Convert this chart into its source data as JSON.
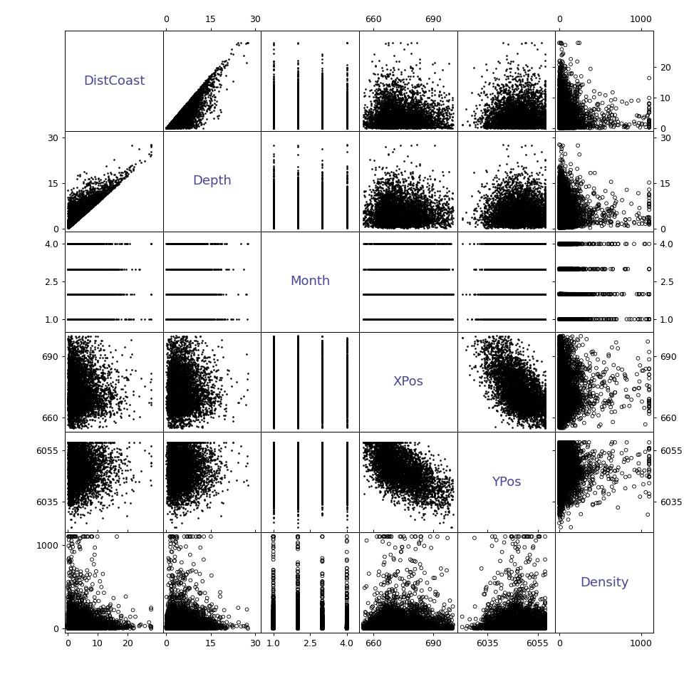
{
  "variables": [
    "DistCoast",
    "Depth",
    "Month",
    "XPos",
    "YPos",
    "Density"
  ],
  "ranges": {
    "DistCoast": [
      -1,
      32
    ],
    "Depth": [
      -1,
      32
    ],
    "Month": [
      0.5,
      4.5
    ],
    "XPos": [
      653,
      702
    ],
    "YPos": [
      6023,
      6062
    ],
    "Density": [
      -50,
      1150
    ]
  },
  "xlims": {
    "DistCoast": [
      -1,
      32
    ],
    "Depth": [
      -1,
      32
    ],
    "Month": [
      0.5,
      4.5
    ],
    "XPos": [
      653,
      702
    ],
    "YPos": [
      6023,
      6062
    ],
    "Density": [
      -50,
      1150
    ]
  },
  "xticks": {
    "DistCoast": [
      0,
      10,
      20
    ],
    "Depth": [
      0,
      15,
      30
    ],
    "Month": [
      1.0,
      2.5,
      4.0
    ],
    "XPos": [
      660,
      690
    ],
    "YPos": [
      6035,
      6055
    ],
    "Density": [
      0,
      1000
    ]
  },
  "top_xticks": {
    "DistCoast": [],
    "Depth": [
      0,
      15,
      30
    ],
    "Month": [],
    "XPos": [
      660,
      690
    ],
    "YPos": [],
    "Density": [
      0,
      1000
    ]
  },
  "yticks": {
    "DistCoast": [
      0,
      10,
      20
    ],
    "Depth": [
      0,
      15,
      30
    ],
    "Month": [
      1.0,
      2.5,
      4.0
    ],
    "XPos": [
      660,
      690
    ],
    "YPos": [
      6035,
      6055
    ],
    "Density": [
      0,
      1000
    ]
  },
  "n_points": 5000,
  "background_color": "#ffffff",
  "scatter_color": "black",
  "tick_fontsize": 9,
  "diagonal_fontsize": 13
}
